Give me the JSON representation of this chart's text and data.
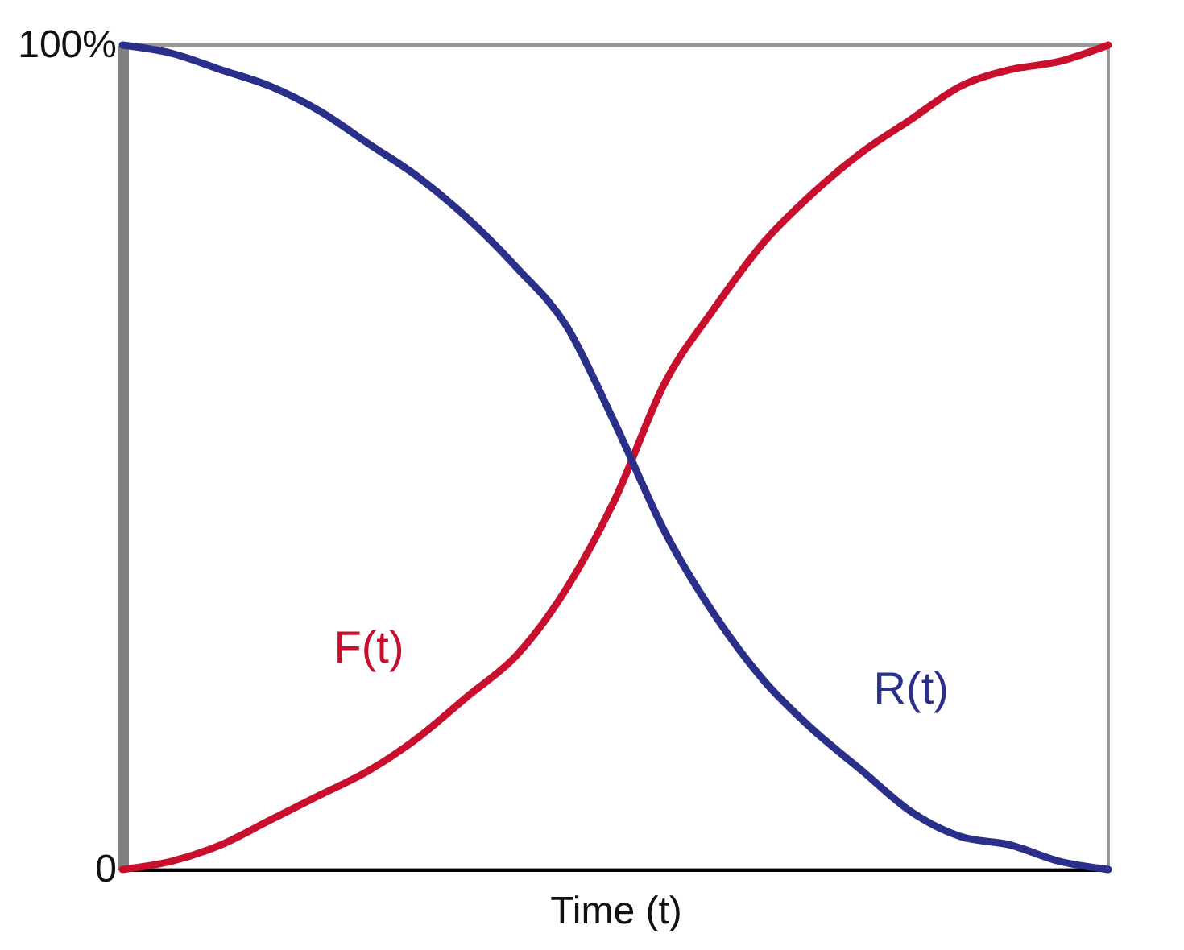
{
  "chart_data": {
    "type": "line",
    "xlabel": "Time (t)",
    "categories": [
      null,
      null,
      null,
      null,
      null,
      null,
      null,
      null,
      null,
      null,
      null,
      null,
      null,
      null,
      null,
      null,
      null,
      null,
      null,
      null,
      null
    ],
    "series": [
      {
        "name": "F(t)",
        "color": "#c8102e",
        "values": [
          0,
          1,
          3,
          6,
          9,
          12,
          16,
          21,
          26,
          34,
          45,
          59,
          68,
          76,
          82,
          87,
          91,
          95,
          97,
          98,
          100
        ]
      },
      {
        "name": "R(t)",
        "color": "#2a2f8a",
        "values": [
          100,
          99,
          97,
          95,
          92,
          88,
          84,
          79,
          73,
          66,
          54,
          41,
          31,
          23,
          17,
          12,
          7,
          4,
          3,
          1,
          0
        ]
      }
    ],
    "ylim": [
      0,
      100
    ],
    "yticks": [
      0,
      {
        "value": 100,
        "label": "100%"
      }
    ],
    "grid": false,
    "legend": false,
    "marker": "none",
    "line_style": "solid"
  }
}
